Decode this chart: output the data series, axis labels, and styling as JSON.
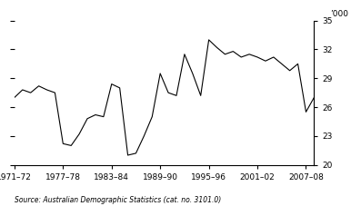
{
  "ylabel_unit": "’000",
  "source_text": "Source: Australian Demographic Statistics (cat. no. 3101.0)",
  "ylim": [
    20,
    35
  ],
  "yticks": [
    20,
    23,
    26,
    29,
    32,
    35
  ],
  "xtick_labels": [
    "1971–72",
    "1977–78",
    "1983–84",
    "1989–90",
    "1995–96",
    "2001–02",
    "2007–08"
  ],
  "xtick_positions": [
    0,
    6,
    12,
    18,
    24,
    30,
    36
  ],
  "line_color": "#000000",
  "background_color": "#ffffff",
  "values": [
    27.0,
    27.8,
    27.5,
    28.2,
    27.8,
    27.5,
    22.2,
    22.0,
    23.2,
    24.8,
    25.2,
    25.0,
    28.4,
    28.0,
    21.0,
    21.2,
    23.0,
    25.0,
    29.5,
    27.5,
    27.2,
    31.5,
    29.5,
    27.2,
    33.0,
    32.2,
    31.5,
    31.8,
    31.2,
    31.5,
    31.2,
    30.8,
    31.2,
    30.5,
    29.8,
    30.5,
    25.5,
    27.0
  ]
}
